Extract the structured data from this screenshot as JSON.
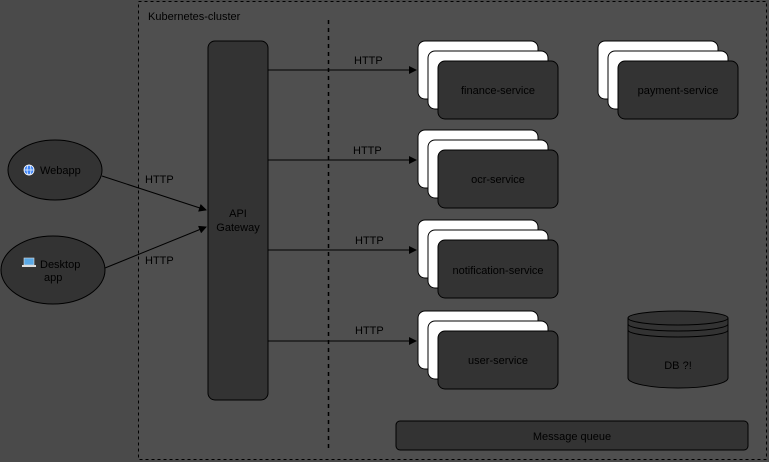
{
  "cluster": {
    "label": "Kubernetes-cluster"
  },
  "clients": {
    "webapp": {
      "icon": "globe-icon",
      "label": "Webapp"
    },
    "desktop": {
      "icon": "laptop-icon",
      "label_line1": "Desktop",
      "label_line2": "app"
    }
  },
  "gateway": {
    "label_line1": "API",
    "label_line2": "Gateway"
  },
  "edges": {
    "webapp_to_gateway": "HTTP",
    "desktop_to_gateway": "HTTP",
    "gateway_to_finance": "HTTP",
    "gateway_to_ocr": "HTTP",
    "gateway_to_notification": "HTTP",
    "gateway_to_user": "HTTP"
  },
  "services": {
    "finance": "finance-service",
    "ocr": "ocr-service",
    "notification": "notification-service",
    "user": "user-service",
    "payment": "payment-service"
  },
  "db": {
    "label": "DB ?!"
  },
  "queue": {
    "label": "Message queue"
  },
  "colors": {
    "background": "#4a4a4a",
    "node_fill": "#333333",
    "stack_fill": "#ffffff",
    "stroke": "#000000"
  }
}
